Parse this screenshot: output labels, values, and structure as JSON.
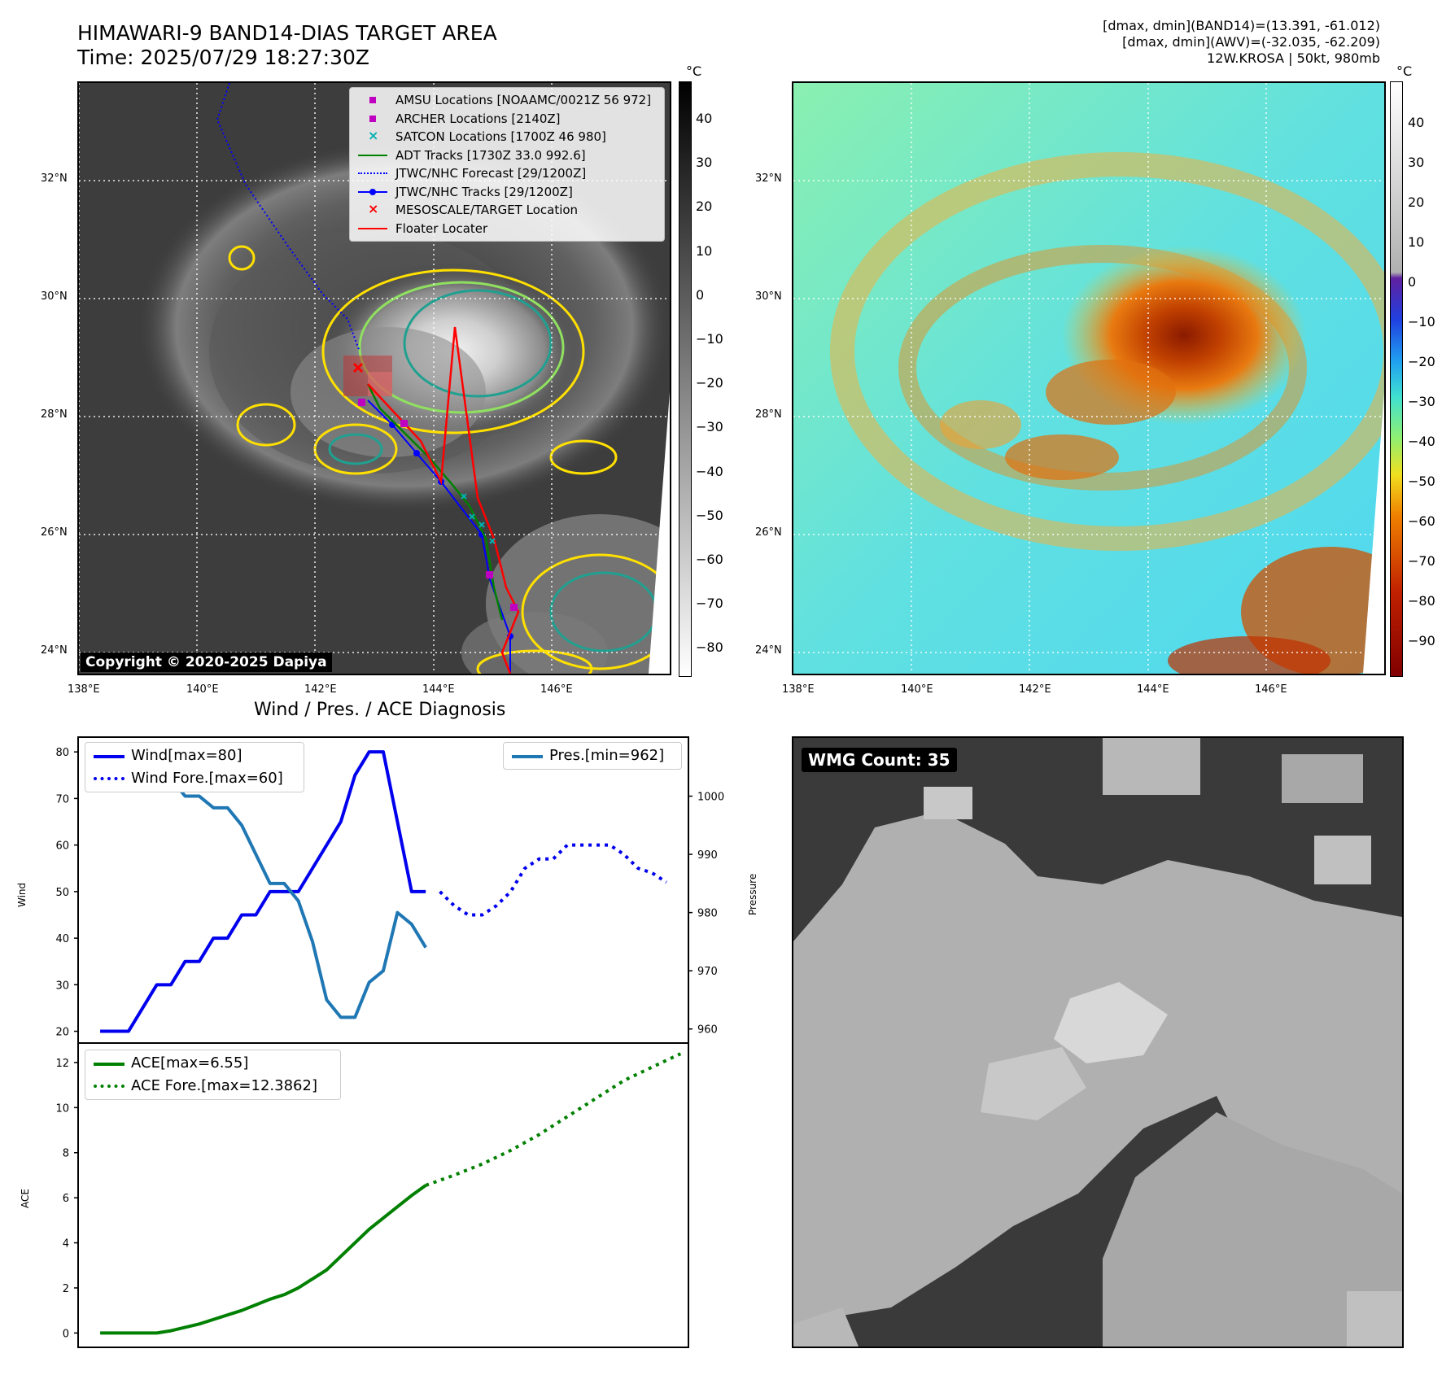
{
  "header": {
    "title_line1": "HIMAWARI-9 BAND14-DIAS TARGET AREA",
    "title_line2": "Time: 2025/07/29 18:27:30Z",
    "info_line1": "[dmax, dmin](BAND14)=(13.391, -61.012)",
    "info_line2": "[dmax, dmin](AWV)=(-32.035, -62.209)",
    "info_line3": "12W.KROSA | 50kt, 980mb"
  },
  "maps": {
    "lon_ticks": [
      "138°E",
      "140°E",
      "142°E",
      "144°E",
      "146°E"
    ],
    "lat_ticks": [
      "32°N",
      "30°N",
      "28°N",
      "26°N",
      "24°N"
    ],
    "ir_colorbar": {
      "unit": "°C",
      "ticks": [
        "40",
        "30",
        "20",
        "10",
        "0",
        "−10",
        "−20",
        "−30",
        "−40",
        "−50",
        "−60",
        "−70",
        "−80"
      ]
    },
    "wv_colorbar": {
      "unit": "°C",
      "ticks": [
        "40",
        "30",
        "20",
        "10",
        "0",
        "−10",
        "−20",
        "−30",
        "−40",
        "−50",
        "−60",
        "−70",
        "−80",
        "−90"
      ]
    },
    "legend": [
      {
        "label": "AMSU Locations [NOAAMC/0021Z 56 972]",
        "color": "#c000c0",
        "marker": "square"
      },
      {
        "label": "ARCHER Locations [2140Z]",
        "color": "#c000c0",
        "marker": "square"
      },
      {
        "label": "SATCON Locations [1700Z 46 980]",
        "color": "#00b0b0",
        "marker": "x"
      },
      {
        "label": "ADT Tracks [1730Z 33.0 992.6]",
        "color": "#008000",
        "marker": "line"
      },
      {
        "label": "JTWC/NHC Forecast [29/1200Z]",
        "color": "#0000ff",
        "marker": "dotted"
      },
      {
        "label": "JTWC/NHC Tracks [29/1200Z]",
        "color": "#0000ff",
        "marker": "line-dot"
      },
      {
        "label": "MESOSCALE/TARGET Location",
        "color": "#ff0000",
        "marker": "x"
      },
      {
        "label": "Floater Locater",
        "color": "#ff0000",
        "marker": "line"
      }
    ],
    "copyright": "Copyright © 2020-2025 Dapiya"
  },
  "wmg": {
    "label": "WMG Count: 35"
  },
  "chart_data": [
    {
      "type": "line",
      "title": "Wind / Pres. / ACE Diagnosis",
      "ylabel": "Wind",
      "ylim": [
        18,
        83
      ],
      "yticks": [
        "80",
        "70",
        "60",
        "50",
        "40",
        "30",
        "20"
      ],
      "series": [
        {
          "name": "Wind[max=80]",
          "color": "#0000ee",
          "style": "solid",
          "x": [
            0,
            1,
            2,
            3,
            4,
            5,
            6,
            7,
            8,
            9,
            10,
            11,
            12,
            13,
            14,
            15,
            16,
            17,
            18,
            19,
            20,
            21,
            22,
            23
          ],
          "values": [
            20,
            20,
            20,
            25,
            30,
            30,
            35,
            35,
            40,
            40,
            45,
            45,
            50,
            50,
            50,
            55,
            60,
            65,
            75,
            80,
            80,
            65,
            50,
            50
          ]
        },
        {
          "name": "Wind Fore.[max=60]",
          "color": "#0000ee",
          "style": "dotted",
          "x": [
            24,
            25,
            26,
            27,
            28,
            29,
            30,
            31,
            32,
            33,
            34,
            35,
            36,
            37,
            38,
            39,
            40
          ],
          "values": [
            50,
            47,
            45,
            45,
            47,
            50,
            55,
            57,
            57,
            60,
            60,
            60,
            60,
            58,
            55,
            54,
            52
          ]
        }
      ]
    },
    {
      "type": "line",
      "ylabel": "Pressure",
      "ylim": [
        958,
        1010
      ],
      "yticks": [
        "1000",
        "990",
        "980",
        "970",
        "960"
      ],
      "series": [
        {
          "name": "Pres.[min=962]",
          "color": "#1f77b4",
          "style": "solid",
          "x": [
            0,
            1,
            2,
            3,
            4,
            5,
            6,
            7,
            8,
            9,
            10,
            11,
            12,
            13,
            14,
            15,
            16,
            17,
            18,
            19,
            20,
            21,
            22,
            23
          ],
          "values": [
            1007,
            1007,
            1007,
            1005,
            1003,
            1003,
            1000,
            1000,
            998,
            998,
            995,
            990,
            985,
            985,
            982,
            975,
            965,
            962,
            962,
            968,
            970,
            980,
            978,
            974
          ]
        }
      ]
    },
    {
      "type": "line",
      "ylabel": "ACE",
      "ylim": [
        -0.6,
        12.9
      ],
      "yticks": [
        "12",
        "10",
        "8",
        "6",
        "4",
        "2",
        "0"
      ],
      "series": [
        {
          "name": "ACE[max=6.55]",
          "color": "#008000",
          "style": "solid",
          "x": [
            0,
            1,
            2,
            3,
            4,
            5,
            6,
            7,
            8,
            9,
            10,
            11,
            12,
            13,
            14,
            15,
            16,
            17,
            18,
            19,
            20,
            21,
            22,
            23
          ],
          "values": [
            0,
            0,
            0,
            0,
            0,
            0.1,
            0.25,
            0.4,
            0.6,
            0.8,
            1.0,
            1.25,
            1.5,
            1.7,
            2.0,
            2.4,
            2.8,
            3.4,
            4.0,
            4.6,
            5.1,
            5.6,
            6.1,
            6.55
          ]
        },
        {
          "name": "ACE Fore.[max=12.3862]",
          "color": "#008000",
          "style": "dotted",
          "x": [
            23,
            25,
            27,
            29,
            31,
            33,
            35,
            37,
            39,
            41
          ],
          "values": [
            6.55,
            7.0,
            7.5,
            8.1,
            8.8,
            9.6,
            10.4,
            11.2,
            11.8,
            12.39
          ]
        }
      ]
    }
  ]
}
